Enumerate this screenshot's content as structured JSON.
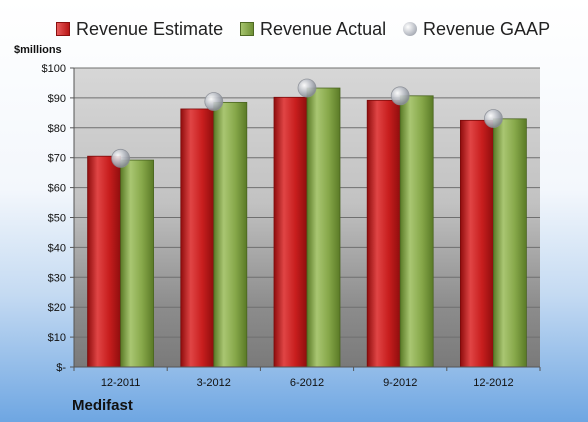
{
  "chart_data": {
    "type": "bar",
    "unit_label": "$millions",
    "company": "Medifast",
    "categories": [
      "12-2011",
      "3-2012",
      "6-2012",
      "9-2012",
      "12-2012"
    ],
    "series": [
      {
        "name": "Revenue Estimate",
        "kind": "bar",
        "color": "#c81e1e",
        "values": [
          70.5,
          86.3,
          90.2,
          89.2,
          82.5
        ]
      },
      {
        "name": "Revenue Actual",
        "kind": "bar",
        "color": "#87a84a",
        "values": [
          69.2,
          88.5,
          93.3,
          90.7,
          83.0
        ]
      },
      {
        "name": "Revenue GAAP",
        "kind": "marker",
        "color": "#b0b4bc",
        "values": [
          69.8,
          88.8,
          93.3,
          90.7,
          83.1
        ]
      }
    ],
    "ylim": [
      0,
      100
    ],
    "yticks": [
      0,
      10,
      20,
      30,
      40,
      50,
      60,
      70,
      80,
      90,
      100
    ],
    "ytick_labels": [
      "$-",
      "$10",
      "$20",
      "$30",
      "$40",
      "$50",
      "$60",
      "$70",
      "$80",
      "$90",
      "$100"
    ],
    "grid": true,
    "legend_position": "top"
  }
}
